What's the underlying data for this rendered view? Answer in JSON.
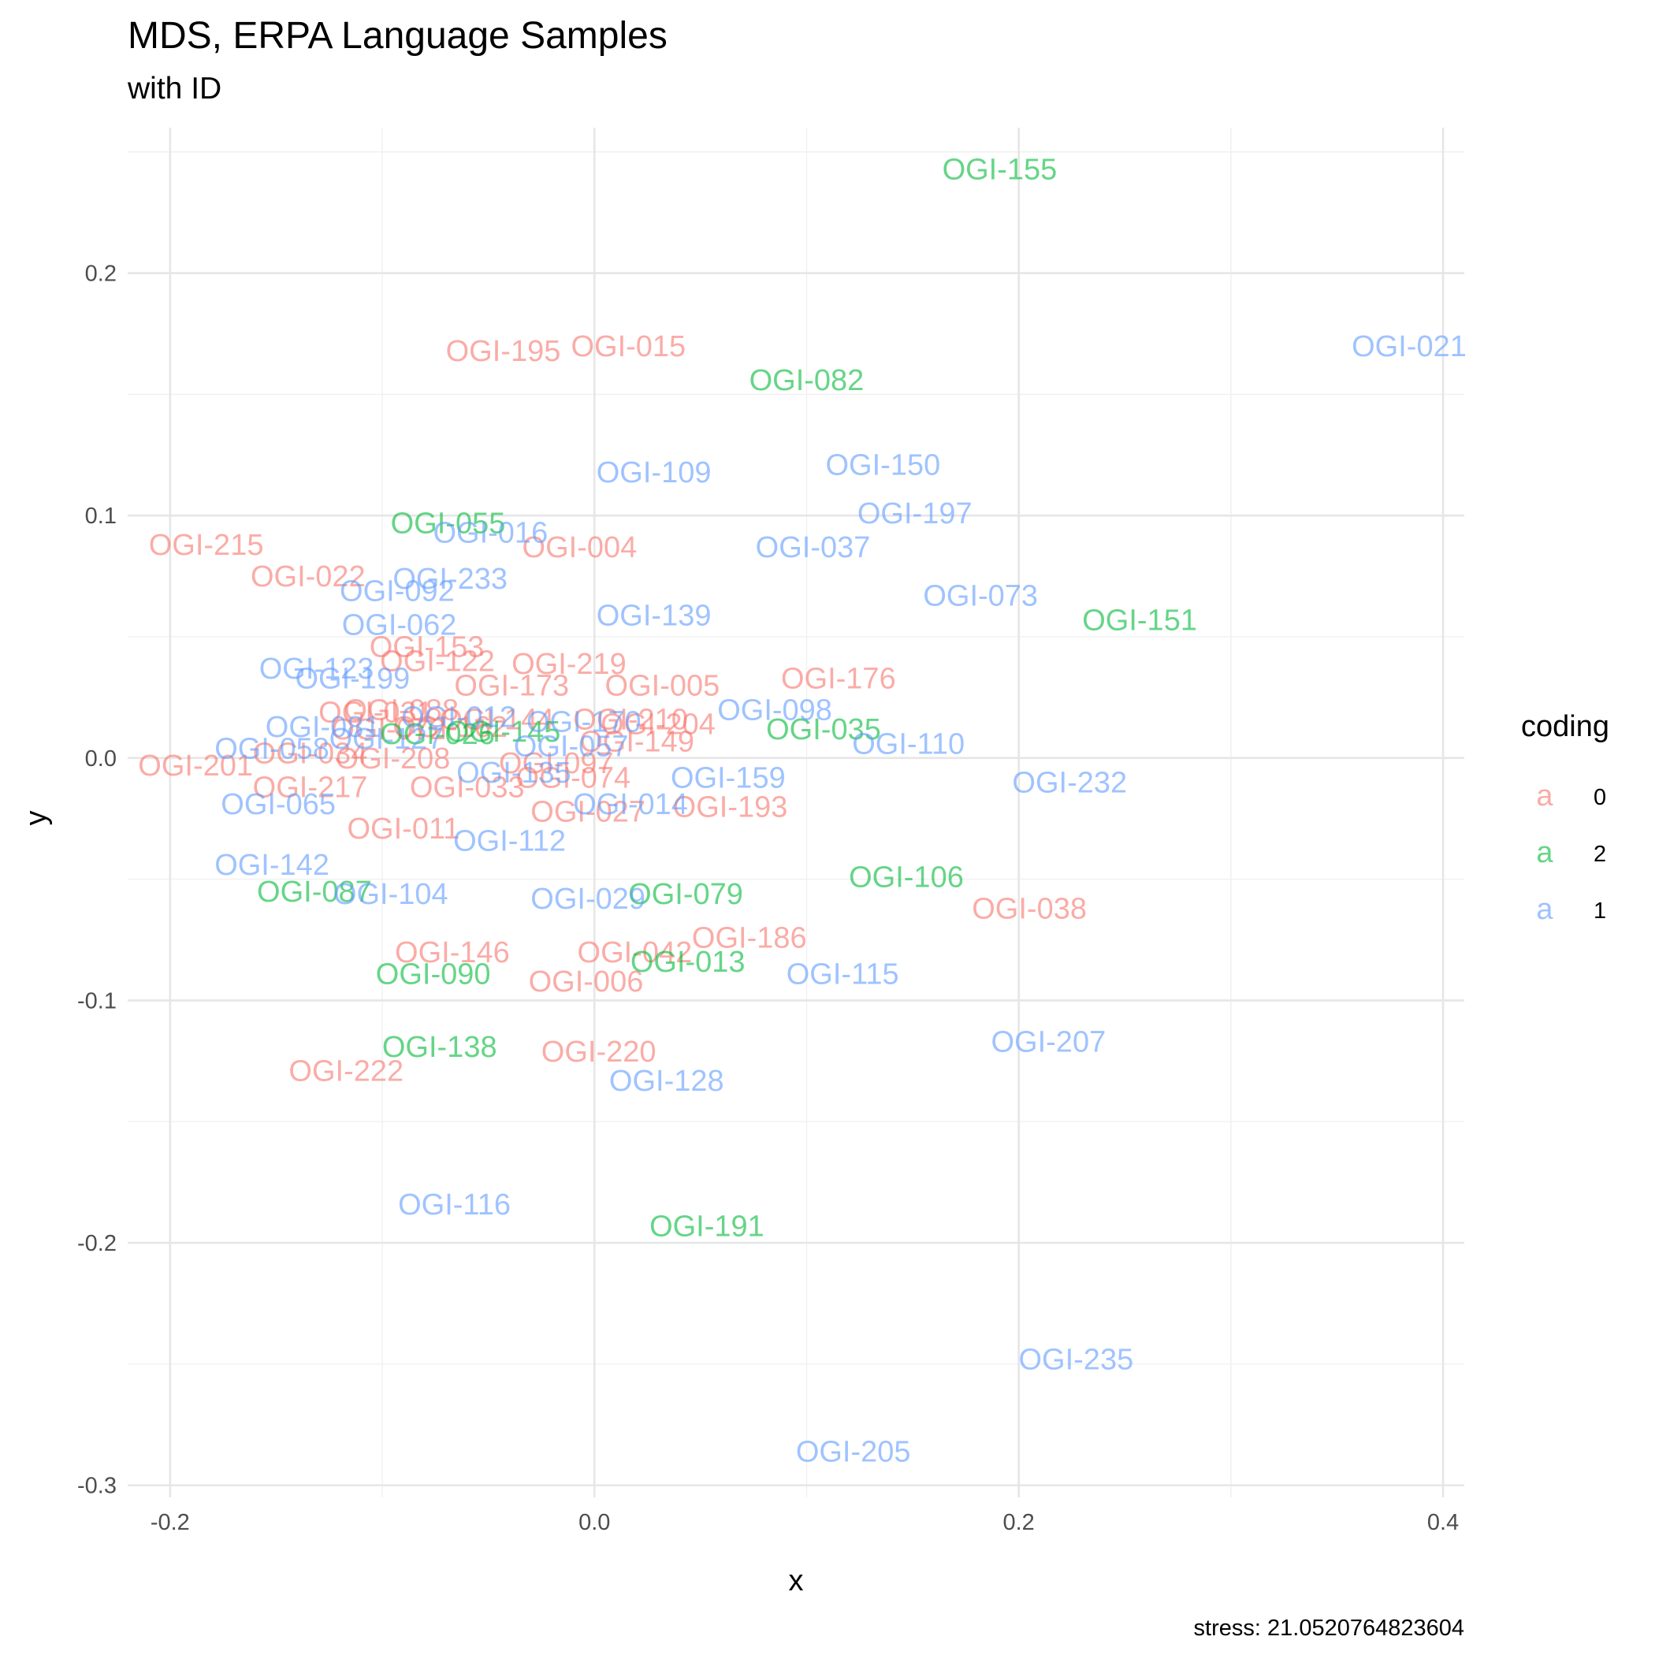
{
  "chart_data": {
    "type": "scatter",
    "title": "MDS, ERPA Language Samples",
    "subtitle": "with ID",
    "xlabel": "x",
    "ylabel": "y",
    "caption": "stress: 21.0520764823604",
    "xlim": [
      -0.22,
      0.41
    ],
    "ylim": [
      -0.305,
      0.26
    ],
    "x_ticks": [
      -0.2,
      0.0,
      0.2,
      0.4
    ],
    "x_tick_labels": [
      "-0.2",
      "0.0",
      "0.2",
      "0.4"
    ],
    "y_ticks": [
      -0.3,
      -0.2,
      -0.1,
      0.0,
      0.1,
      0.2
    ],
    "y_tick_labels": [
      "-0.3",
      "-0.2",
      "-0.1",
      "0.0",
      "0.1",
      "0.2"
    ],
    "grid": true,
    "legend": {
      "title": "coding",
      "placement": "right",
      "key_glyph": "a",
      "entries": [
        {
          "label": "0",
          "color": "#F8766D"
        },
        {
          "label": "2",
          "color": "#00BA38"
        },
        {
          "label": "1",
          "color": "#619CFF"
        }
      ]
    },
    "series": [
      {
        "name": "0",
        "color": "#F8766D",
        "points": [
          {
            "label": "OGI-195",
            "x": -0.043,
            "y": 0.168
          },
          {
            "label": "OGI-015",
            "x": 0.016,
            "y": 0.17
          },
          {
            "label": "OGI-215",
            "x": -0.183,
            "y": 0.088
          },
          {
            "label": "OGI-004",
            "x": -0.007,
            "y": 0.087
          },
          {
            "label": "OGI-022",
            "x": -0.135,
            "y": 0.075
          },
          {
            "label": "OGI-153",
            "x": -0.079,
            "y": 0.046
          },
          {
            "label": "OGI-122",
            "x": -0.074,
            "y": 0.04
          },
          {
            "label": "OGI-219",
            "x": -0.012,
            "y": 0.039
          },
          {
            "label": "OGI-173",
            "x": -0.039,
            "y": 0.03
          },
          {
            "label": "OGI-005",
            "x": 0.032,
            "y": 0.03
          },
          {
            "label": "OGI-176",
            "x": 0.115,
            "y": 0.033
          },
          {
            "label": "OGI-031",
            "x": -0.103,
            "y": 0.019
          },
          {
            "label": "OGI-088",
            "x": -0.091,
            "y": 0.02
          },
          {
            "label": "OGI-144",
            "x": -0.046,
            "y": 0.016
          },
          {
            "label": "OGI-210",
            "x": 0.017,
            "y": 0.016
          },
          {
            "label": "OGI-204",
            "x": 0.03,
            "y": 0.014
          },
          {
            "label": "OGI-072",
            "x": -0.097,
            "y": 0.012
          },
          {
            "label": "OGI-162",
            "x": -0.068,
            "y": 0.013
          },
          {
            "label": "OGI-149",
            "x": 0.02,
            "y": 0.007
          },
          {
            "label": "OGI-201",
            "x": -0.188,
            "y": -0.003
          },
          {
            "label": "OGI-034",
            "x": -0.134,
            "y": 0.002
          },
          {
            "label": "OGI-208",
            "x": -0.095,
            "y": 0.0
          },
          {
            "label": "OGI-217",
            "x": -0.134,
            "y": -0.012
          },
          {
            "label": "OGI-033",
            "x": -0.06,
            "y": -0.012
          },
          {
            "label": "OGI-097",
            "x": -0.018,
            "y": -0.002
          },
          {
            "label": "OGI-074",
            "x": -0.01,
            "y": -0.008
          },
          {
            "label": "OGI-193",
            "x": 0.064,
            "y": -0.02
          },
          {
            "label": "OGI-027",
            "x": -0.003,
            "y": -0.022
          },
          {
            "label": "OGI-011",
            "x": -0.09,
            "y": -0.029
          },
          {
            "label": "OGI-038",
            "x": 0.205,
            "y": -0.062
          },
          {
            "label": "OGI-186",
            "x": 0.073,
            "y": -0.074
          },
          {
            "label": "OGI-146",
            "x": -0.067,
            "y": -0.08
          },
          {
            "label": "OGI-042",
            "x": 0.019,
            "y": -0.08
          },
          {
            "label": "OGI-006",
            "x": -0.004,
            "y": -0.092
          },
          {
            "label": "OGI-220",
            "x": 0.002,
            "y": -0.121
          },
          {
            "label": "OGI-222",
            "x": -0.117,
            "y": -0.129
          }
        ]
      },
      {
        "name": "2",
        "color": "#00BA38",
        "points": [
          {
            "label": "OGI-155",
            "x": 0.191,
            "y": 0.243
          },
          {
            "label": "OGI-082",
            "x": 0.1,
            "y": 0.156
          },
          {
            "label": "OGI-055",
            "x": -0.069,
            "y": 0.097
          },
          {
            "label": "OGI-151",
            "x": 0.257,
            "y": 0.057
          },
          {
            "label": "OGI-035",
            "x": 0.108,
            "y": 0.012
          },
          {
            "label": "OGI-026",
            "x": -0.074,
            "y": 0.01
          },
          {
            "label": "OGI-145",
            "x": -0.043,
            "y": 0.011
          },
          {
            "label": "OGI-106",
            "x": 0.147,
            "y": -0.049
          },
          {
            "label": "OGI-087",
            "x": -0.132,
            "y": -0.055
          },
          {
            "label": "OGI-079",
            "x": 0.043,
            "y": -0.056
          },
          {
            "label": "OGI-013",
            "x": 0.044,
            "y": -0.084
          },
          {
            "label": "OGI-090",
            "x": -0.076,
            "y": -0.089
          },
          {
            "label": "OGI-138",
            "x": -0.073,
            "y": -0.119
          },
          {
            "label": "OGI-191",
            "x": 0.053,
            "y": -0.193
          }
        ]
      },
      {
        "name": "1",
        "color": "#619CFF",
        "points": [
          {
            "label": "OGI-021",
            "x": 0.384,
            "y": 0.17
          },
          {
            "label": "OGI-109",
            "x": 0.028,
            "y": 0.118
          },
          {
            "label": "OGI-150",
            "x": 0.136,
            "y": 0.121
          },
          {
            "label": "OGI-197",
            "x": 0.151,
            "y": 0.101
          },
          {
            "label": "OGI-016",
            "x": -0.049,
            "y": 0.093
          },
          {
            "label": "OGI-037",
            "x": 0.103,
            "y": 0.087
          },
          {
            "label": "OGI-233",
            "x": -0.068,
            "y": 0.074
          },
          {
            "label": "OGI-092",
            "x": -0.093,
            "y": 0.069
          },
          {
            "label": "OGI-073",
            "x": 0.182,
            "y": 0.067
          },
          {
            "label": "OGI-062",
            "x": -0.092,
            "y": 0.055
          },
          {
            "label": "OGI-139",
            "x": 0.028,
            "y": 0.059
          },
          {
            "label": "OGI-123",
            "x": -0.131,
            "y": 0.037
          },
          {
            "label": "OGI-199",
            "x": -0.114,
            "y": 0.033
          },
          {
            "label": "OGI-098",
            "x": 0.085,
            "y": 0.02
          },
          {
            "label": "OGI-081",
            "x": -0.128,
            "y": 0.013
          },
          {
            "label": "OGI-012",
            "x": -0.064,
            "y": 0.017
          },
          {
            "label": "OGI-170",
            "x": -0.005,
            "y": 0.015
          },
          {
            "label": "OGI-110",
            "x": 0.148,
            "y": 0.006
          },
          {
            "label": "OGI-058",
            "x": -0.152,
            "y": 0.004
          },
          {
            "label": "OGI-127",
            "x": -0.098,
            "y": 0.008
          },
          {
            "label": "OGI-057",
            "x": -0.011,
            "y": 0.005
          },
          {
            "label": "OGI-159",
            "x": 0.063,
            "y": -0.008
          },
          {
            "label": "OGI-232",
            "x": 0.224,
            "y": -0.01
          },
          {
            "label": "OGI-135",
            "x": -0.038,
            "y": -0.006
          },
          {
            "label": "OGI-065",
            "x": -0.149,
            "y": -0.019
          },
          {
            "label": "OGI-014",
            "x": 0.017,
            "y": -0.019
          },
          {
            "label": "OGI-112",
            "x": -0.04,
            "y": -0.034
          },
          {
            "label": "OGI-142",
            "x": -0.152,
            "y": -0.044
          },
          {
            "label": "OGI-104",
            "x": -0.096,
            "y": -0.056
          },
          {
            "label": "OGI-029",
            "x": -0.003,
            "y": -0.058
          },
          {
            "label": "OGI-115",
            "x": 0.117,
            "y": -0.089
          },
          {
            "label": "OGI-207",
            "x": 0.214,
            "y": -0.117
          },
          {
            "label": "OGI-128",
            "x": 0.034,
            "y": -0.133
          },
          {
            "label": "OGI-116",
            "x": -0.066,
            "y": -0.184
          },
          {
            "label": "OGI-235",
            "x": 0.227,
            "y": -0.248
          },
          {
            "label": "OGI-205",
            "x": 0.122,
            "y": -0.286
          }
        ]
      }
    ]
  }
}
